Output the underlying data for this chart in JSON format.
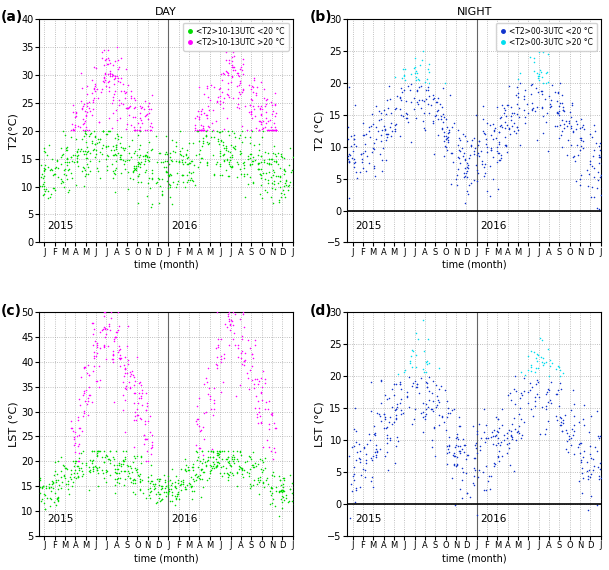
{
  "panels": {
    "a": {
      "label": "(a)",
      "title": "DAY",
      "ylabel": "T2(°C)",
      "xlabel": "time (month)",
      "ylim": [
        0,
        40
      ],
      "yticks": [
        0,
        5,
        10,
        15,
        20,
        25,
        30,
        35,
        40
      ],
      "legend1": "<T2>10-13UTC <20 °C",
      "legend2": "<T2>10-13UTC >20 °C",
      "color_low": "#00dd00",
      "color_high": "#ff00ff",
      "hline": false
    },
    "b": {
      "label": "(b)",
      "title": "NIGHT",
      "ylabel": "T2 (°C)",
      "xlabel": "time (month)",
      "ylim": [
        -5,
        30
      ],
      "yticks": [
        -5,
        0,
        5,
        10,
        15,
        20,
        25,
        30
      ],
      "legend1": "<T2>00-3UTC <20 °C",
      "legend2": "<T2>00-3UTC >20 °C",
      "color_low": "#1133cc",
      "color_high": "#00ddee",
      "hline": true
    },
    "c": {
      "label": "(c)",
      "title": "",
      "ylabel": "LST (°C)",
      "xlabel": "time (month)",
      "ylim": [
        5,
        50
      ],
      "yticks": [
        5,
        10,
        15,
        20,
        25,
        30,
        35,
        40,
        45,
        50
      ],
      "color_low": "#00dd00",
      "color_high": "#ff00ff",
      "hline": false
    },
    "d": {
      "label": "(d)",
      "title": "",
      "ylabel": "LST (°C)",
      "xlabel": "time (month)",
      "ylim": [
        -5,
        30
      ],
      "yticks": [
        -5,
        0,
        5,
        10,
        15,
        20,
        25,
        30
      ],
      "color_low": "#1133cc",
      "color_high": "#00ddee",
      "hline": true
    }
  },
  "months": [
    "J",
    "F",
    "M",
    "A",
    "M",
    "J",
    "J",
    "A",
    "S",
    "O",
    "N",
    "D",
    "J",
    "F",
    "M",
    "A",
    "M",
    "J",
    "J",
    "A",
    "S",
    "O",
    "N",
    "D",
    "J"
  ],
  "background_color": "#ffffff",
  "grid_color": "#999999"
}
